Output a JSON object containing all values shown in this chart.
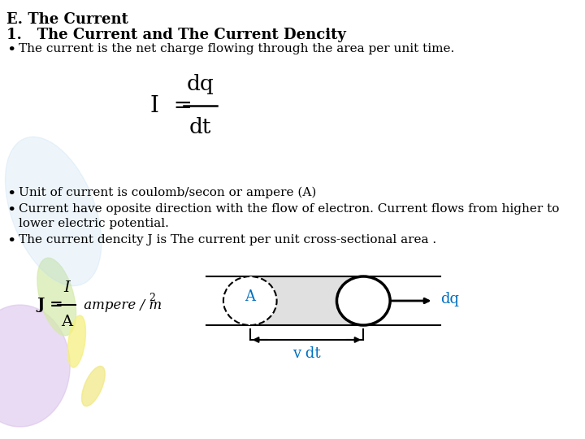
{
  "title1": "E. The Current",
  "title2": "1.   The Current and The Current Dencity",
  "bullet1": "The current is the net charge flowing through the area per unit time.",
  "bullet2": "Unit of current is coulomb/secon or ampere (A)",
  "bullet3": "Current have oposite direction with the flow of electron. Current flows from higher to",
  "bullet3b": "lower electric potential.",
  "bullet4": "The current dencity J is The current per unit cross-sectional area .",
  "diagram_A_label": "A",
  "diagram_vdt_label": "v dt",
  "diagram_dq_label": "dq",
  "bg_color": "#ffffff",
  "text_color": "#000000",
  "blue_color": "#0070c0",
  "decor_purple": "#d8bfea",
  "decor_green": "#d4eaaa",
  "decor_yellow": "#f5f080",
  "decor_blue_arc": "#b8d8f0",
  "decor_yellow2": "#f0e880"
}
